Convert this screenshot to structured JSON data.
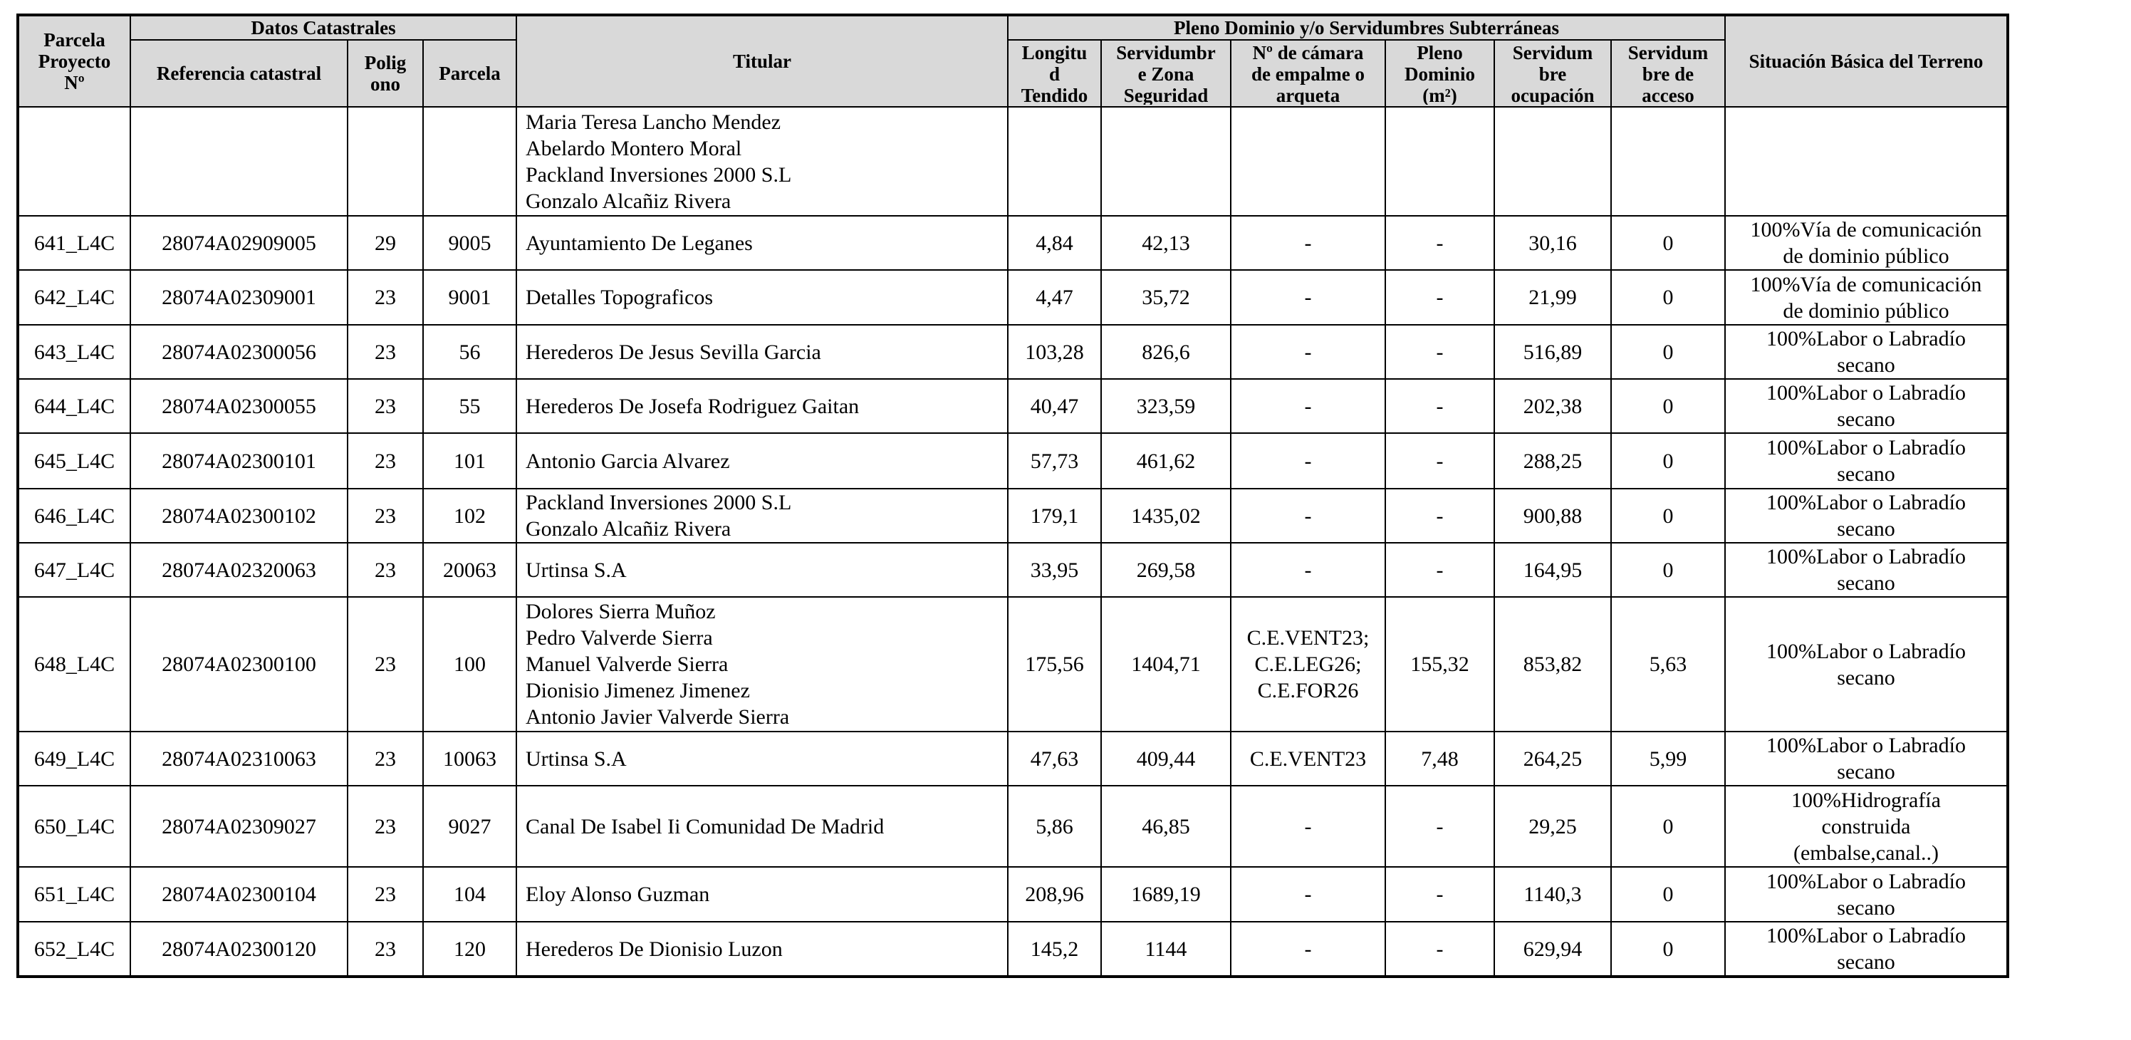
{
  "table": {
    "group_headers": {
      "datos": "Datos Catastrales",
      "pleno": "Pleno Dominio y/o Servidumbres Subterráneas"
    },
    "headers": [
      [
        "Parcela",
        "Proyecto",
        "Nº"
      ],
      [
        "Referencia catastral"
      ],
      [
        "Polig",
        "ono"
      ],
      [
        "Parcela"
      ],
      [
        "Titular"
      ],
      [
        "Longitu",
        "d",
        "Tendido"
      ],
      [
        "Servidumbr",
        "e Zona",
        "Seguridad"
      ],
      [
        "Nº de cámara",
        "de empalme o",
        "arqueta"
      ],
      [
        "Pleno",
        "Dominio",
        "(m²)"
      ],
      [
        "Servidum",
        "bre",
        "ocupación"
      ],
      [
        "Servidum",
        "bre de",
        "acceso"
      ],
      [
        "Situación Básica del Terreno"
      ]
    ],
    "rows": [
      [
        null,
        null,
        null,
        null,
        [
          "Maria Teresa Lancho Mendez",
          "Abelardo Montero Moral",
          "Packland Inversiones 2000 S.L",
          "Gonzalo Alcañiz Rivera"
        ],
        null,
        null,
        null,
        null,
        null,
        null,
        null
      ],
      [
        "641_L4C",
        "28074A02909005",
        "29",
        "9005",
        [
          "Ayuntamiento De Leganes"
        ],
        "4,84",
        "42,13",
        "-",
        "-",
        "30,16",
        "0",
        [
          "100%Vía de comunicación",
          "de dominio público"
        ]
      ],
      [
        "642_L4C",
        "28074A02309001",
        "23",
        "9001",
        [
          "Detalles Topograficos"
        ],
        "4,47",
        "35,72",
        "-",
        "-",
        "21,99",
        "0",
        [
          "100%Vía de comunicación",
          "de dominio público"
        ]
      ],
      [
        "643_L4C",
        "28074A02300056",
        "23",
        "56",
        [
          "Herederos De Jesus Sevilla Garcia"
        ],
        "103,28",
        "826,6",
        "-",
        "-",
        "516,89",
        "0",
        [
          "100%Labor o Labradío",
          "secano"
        ]
      ],
      [
        "644_L4C",
        "28074A02300055",
        "23",
        "55",
        [
          "Herederos De Josefa Rodriguez Gaitan"
        ],
        "40,47",
        "323,59",
        "-",
        "-",
        "202,38",
        "0",
        [
          "100%Labor o Labradío",
          "secano"
        ]
      ],
      [
        "645_L4C",
        "28074A02300101",
        "23",
        "101",
        [
          "Antonio Garcia Alvarez"
        ],
        "57,73",
        "461,62",
        "-",
        "-",
        "288,25",
        "0",
        [
          "100%Labor o Labradío",
          "secano"
        ]
      ],
      [
        "646_L4C",
        "28074A02300102",
        "23",
        "102",
        [
          "Packland Inversiones 2000 S.L",
          "Gonzalo Alcañiz Rivera"
        ],
        "179,1",
        "1435,02",
        "-",
        "-",
        "900,88",
        "0",
        [
          "100%Labor o Labradío",
          "secano"
        ]
      ],
      [
        "647_L4C",
        "28074A02320063",
        "23",
        "20063",
        [
          "Urtinsa S.A"
        ],
        "33,95",
        "269,58",
        "-",
        "-",
        "164,95",
        "0",
        [
          "100%Labor o Labradío",
          "secano"
        ]
      ],
      [
        "648_L4C",
        "28074A02300100",
        "23",
        "100",
        [
          "Dolores Sierra Muñoz",
          "Pedro Valverde Sierra",
          "Manuel Valverde Sierra",
          "Dionisio Jimenez Jimenez",
          "Antonio Javier Valverde Sierra"
        ],
        "175,56",
        "1404,71",
        [
          "C.E.VENT23;",
          "C.E.LEG26;",
          "C.E.FOR26"
        ],
        "155,32",
        "853,82",
        "5,63",
        [
          "100%Labor o Labradío",
          "secano"
        ]
      ],
      [
        "649_L4C",
        "28074A02310063",
        "23",
        "10063",
        [
          "Urtinsa S.A"
        ],
        "47,63",
        "409,44",
        "C.E.VENT23",
        "7,48",
        "264,25",
        "5,99",
        [
          "100%Labor o Labradío",
          "secano"
        ]
      ],
      [
        "650_L4C",
        "28074A02309027",
        "23",
        "9027",
        [
          "Canal De Isabel Ii Comunidad De Madrid"
        ],
        "5,86",
        "46,85",
        "-",
        "-",
        "29,25",
        "0",
        [
          "100%Hidrografía",
          "construida",
          "(embalse,canal..)"
        ]
      ],
      [
        "651_L4C",
        "28074A02300104",
        "23",
        "104",
        [
          "Eloy Alonso Guzman"
        ],
        "208,96",
        "1689,19",
        "-",
        "-",
        "1140,3",
        "0",
        [
          "100%Labor o Labradío",
          "secano"
        ]
      ],
      [
        "652_L4C",
        "28074A02300120",
        "23",
        "120",
        [
          "Herederos De Dionisio Luzon"
        ],
        "145,2",
        "1144",
        "-",
        "-",
        "629,94",
        "0",
        [
          "100%Labor o Labradío",
          "secano"
        ]
      ]
    ]
  }
}
